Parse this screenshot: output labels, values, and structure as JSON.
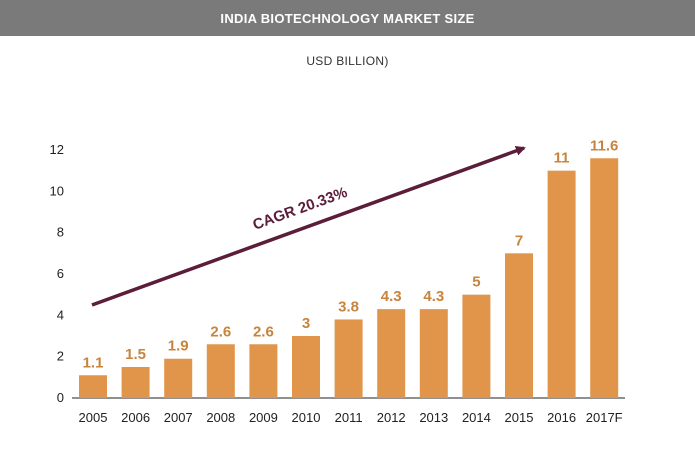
{
  "header": {
    "title": "INDIA BIOTECHNOLOGY MARKET SIZE",
    "subtitle": "USD BILLION)"
  },
  "annotation": {
    "cagr_label": "CAGR 20.33%"
  },
  "colors": {
    "banner": "#7a7a7a",
    "bar": "#e0954a",
    "data_label": "#c8843c",
    "arrow": "#5b1d3a"
  },
  "chart_data": {
    "type": "bar",
    "title": "INDIA BIOTECHNOLOGY MARKET SIZE",
    "subtitle": "USD BILLION)",
    "categories": [
      "2005",
      "2006",
      "2007",
      "2008",
      "2009",
      "2010",
      "2011",
      "2012",
      "2013",
      "2014",
      "2015",
      "2016",
      "2017F"
    ],
    "values": [
      1.1,
      1.5,
      1.9,
      2.6,
      2.6,
      3,
      3.8,
      4.3,
      4.3,
      5,
      7,
      11,
      11.6
    ],
    "value_labels": [
      "1.1",
      "1.5",
      "1.9",
      "2.6",
      "2.6",
      "3",
      "3.8",
      "4.3",
      "4.3",
      "5",
      "7",
      "11",
      "11.6"
    ],
    "yticks": [
      "0",
      "2",
      "4",
      "6",
      "8",
      "10",
      "12"
    ],
    "ylim": [
      0,
      12
    ],
    "grid": false,
    "legend": "none",
    "annotation": "CAGR 20.33%"
  }
}
